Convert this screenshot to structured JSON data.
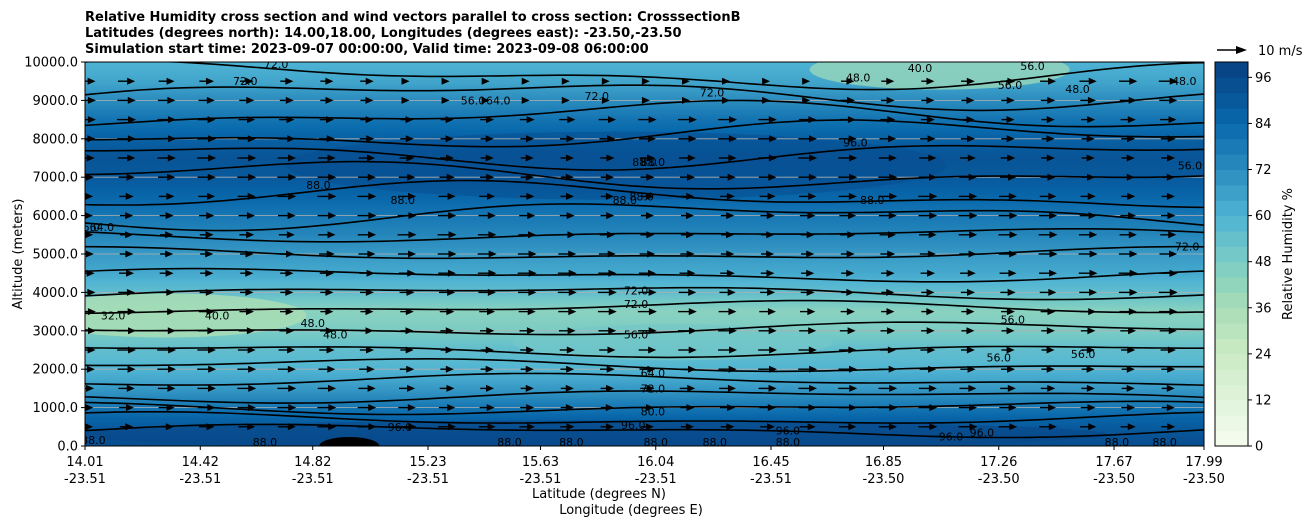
{
  "chart_data": {
    "type": "heatmap",
    "title": [
      "Relative Humidity cross section and wind vectors parallel to cross section: CrosssectionB",
      "Latitudes (degrees north): 14.00,18.00, Longitudes (degrees east): -23.50,-23.50",
      "Simulation start time: 2023-09-07 00:00:00, Valid time: 2023-09-08 06:00:00"
    ],
    "ylabel": "Altitude (meters)",
    "xlabel_lines": [
      "Latitude (degrees N)",
      "Longitude (degrees E)"
    ],
    "ylim": [
      0,
      10000
    ],
    "yticks": [
      "0.0",
      "1000.0",
      "2000.0",
      "3000.0",
      "4000.0",
      "5000.0",
      "6000.0",
      "7000.0",
      "8000.0",
      "9000.0",
      "10000.0"
    ],
    "xticks": [
      {
        "lat": "14.01",
        "lon": "-23.51"
      },
      {
        "lat": "14.42",
        "lon": "-23.51"
      },
      {
        "lat": "14.82",
        "lon": "-23.51"
      },
      {
        "lat": "15.23",
        "lon": "-23.51"
      },
      {
        "lat": "15.63",
        "lon": "-23.51"
      },
      {
        "lat": "16.04",
        "lon": "-23.51"
      },
      {
        "lat": "16.45",
        "lon": "-23.51"
      },
      {
        "lat": "16.85",
        "lon": "-23.50"
      },
      {
        "lat": "17.26",
        "lon": "-23.50"
      },
      {
        "lat": "17.67",
        "lon": "-23.50"
      },
      {
        "lat": "17.99",
        "lon": "-23.50"
      }
    ],
    "colorbar": {
      "label": "Relative Humidity %",
      "ticks": [
        "0",
        "12",
        "24",
        "36",
        "48",
        "60",
        "72",
        "84",
        "96"
      ],
      "range": [
        0,
        100
      ],
      "colormap": "GnBu"
    },
    "quiver_key": "10 m/s",
    "grid": "horizontal",
    "rh_profile": {
      "altitudes": [
        0,
        300,
        600,
        900,
        1300,
        1700,
        2100,
        2500,
        3000,
        3500,
        4000,
        4500,
        5000,
        5500,
        6000,
        6500,
        7000,
        7500,
        8000,
        8500,
        9000,
        9500,
        10000
      ],
      "values": [
        95,
        92,
        88,
        82,
        72,
        64,
        58,
        55,
        48,
        44,
        55,
        63,
        68,
        74,
        79,
        85,
        90,
        92,
        87,
        80,
        72,
        64,
        60
      ]
    },
    "contour_labels": [
      {
        "text": "72.0",
        "lat": "14.58",
        "alt": 9500
      },
      {
        "text": "72.0",
        "lat": "14.69",
        "alt": 9950
      },
      {
        "text": "56.0",
        "lat": "15.39",
        "alt": 9000
      },
      {
        "text": "64.0",
        "lat": "15.48",
        "alt": 9000
      },
      {
        "text": "72.0",
        "lat": "15.83",
        "alt": 9120
      },
      {
        "text": "72.0",
        "lat": "16.24",
        "alt": 9200
      },
      {
        "text": "48.0",
        "lat": "16.76",
        "alt": 9600
      },
      {
        "text": "40.0",
        "lat": "16.98",
        "alt": 9850
      },
      {
        "text": "56.0",
        "lat": "17.30",
        "alt": 9400
      },
      {
        "text": "56.0",
        "lat": "17.38",
        "alt": 9900
      },
      {
        "text": "48.0",
        "lat": "17.54",
        "alt": 9300
      },
      {
        "text": "48.0",
        "lat": "17.92",
        "alt": 9500
      },
      {
        "text": "96.0",
        "lat": "16.75",
        "alt": 7900
      },
      {
        "text": "88.0",
        "lat": "16.00",
        "alt": 7400
      },
      {
        "text": "88.0",
        "lat": "16.03",
        "alt": 7400
      },
      {
        "text": "88.0",
        "lat": "15.93",
        "alt": 6400
      },
      {
        "text": "88.0",
        "lat": "15.99",
        "alt": 6500
      },
      {
        "text": "88.0",
        "lat": "14.84",
        "alt": 6800
      },
      {
        "text": "88.0",
        "lat": "15.14",
        "alt": 6400
      },
      {
        "text": "88.0",
        "lat": "16.81",
        "alt": 6400
      },
      {
        "text": "56.0",
        "lat": "17.94",
        "alt": 7300
      },
      {
        "text": "56.0",
        "lat": "14.02",
        "alt": 5700
      },
      {
        "text": "64.0",
        "lat": "14.07",
        "alt": 5700
      },
      {
        "text": "72.0",
        "lat": "17.93",
        "alt": 5200
      },
      {
        "text": "72.0",
        "lat": "15.97",
        "alt": 4050
      },
      {
        "text": "72.0",
        "lat": "15.97",
        "alt": 3700
      },
      {
        "text": "56.0",
        "lat": "15.97",
        "alt": 2900
      },
      {
        "text": "32.0",
        "lat": "14.11",
        "alt": 3400
      },
      {
        "text": "40.0",
        "lat": "14.48",
        "alt": 3400
      },
      {
        "text": "48.0",
        "lat": "14.82",
        "alt": 3200
      },
      {
        "text": "48.0",
        "lat": "14.90",
        "alt": 2900
      },
      {
        "text": "56.0",
        "lat": "17.31",
        "alt": 3300
      },
      {
        "text": "56.0",
        "lat": "17.26",
        "alt": 2300
      },
      {
        "text": "56.0",
        "lat": "17.56",
        "alt": 2400
      },
      {
        "text": "64.0",
        "lat": "16.03",
        "alt": 1900
      },
      {
        "text": "72.0",
        "lat": "16.03",
        "alt": 1500
      },
      {
        "text": "80.0",
        "lat": "16.03",
        "alt": 900
      },
      {
        "text": "96.0",
        "lat": "15.96",
        "alt": 550
      },
      {
        "text": "88.0",
        "lat": "14.04",
        "alt": 150
      },
      {
        "text": "88.0",
        "lat": "14.65",
        "alt": 100
      },
      {
        "text": "88.0",
        "lat": "15.52",
        "alt": 100
      },
      {
        "text": "88.0",
        "lat": "15.74",
        "alt": 100
      },
      {
        "text": "88.0",
        "lat": "16.04",
        "alt": 100
      },
      {
        "text": "88.0",
        "lat": "16.25",
        "alt": 100
      },
      {
        "text": "88.0",
        "lat": "16.51",
        "alt": 100
      },
      {
        "text": "88.0",
        "lat": "17.68",
        "alt": 100
      },
      {
        "text": "88.0",
        "lat": "17.85",
        "alt": 100
      },
      {
        "text": "96.0",
        "lat": "15.13",
        "alt": 500
      },
      {
        "text": "96.0",
        "lat": "16.51",
        "alt": 400
      },
      {
        "text": "96.0",
        "lat": "17.09",
        "alt": 250
      },
      {
        "text": "96.0",
        "lat": "17.20",
        "alt": 350
      }
    ]
  }
}
